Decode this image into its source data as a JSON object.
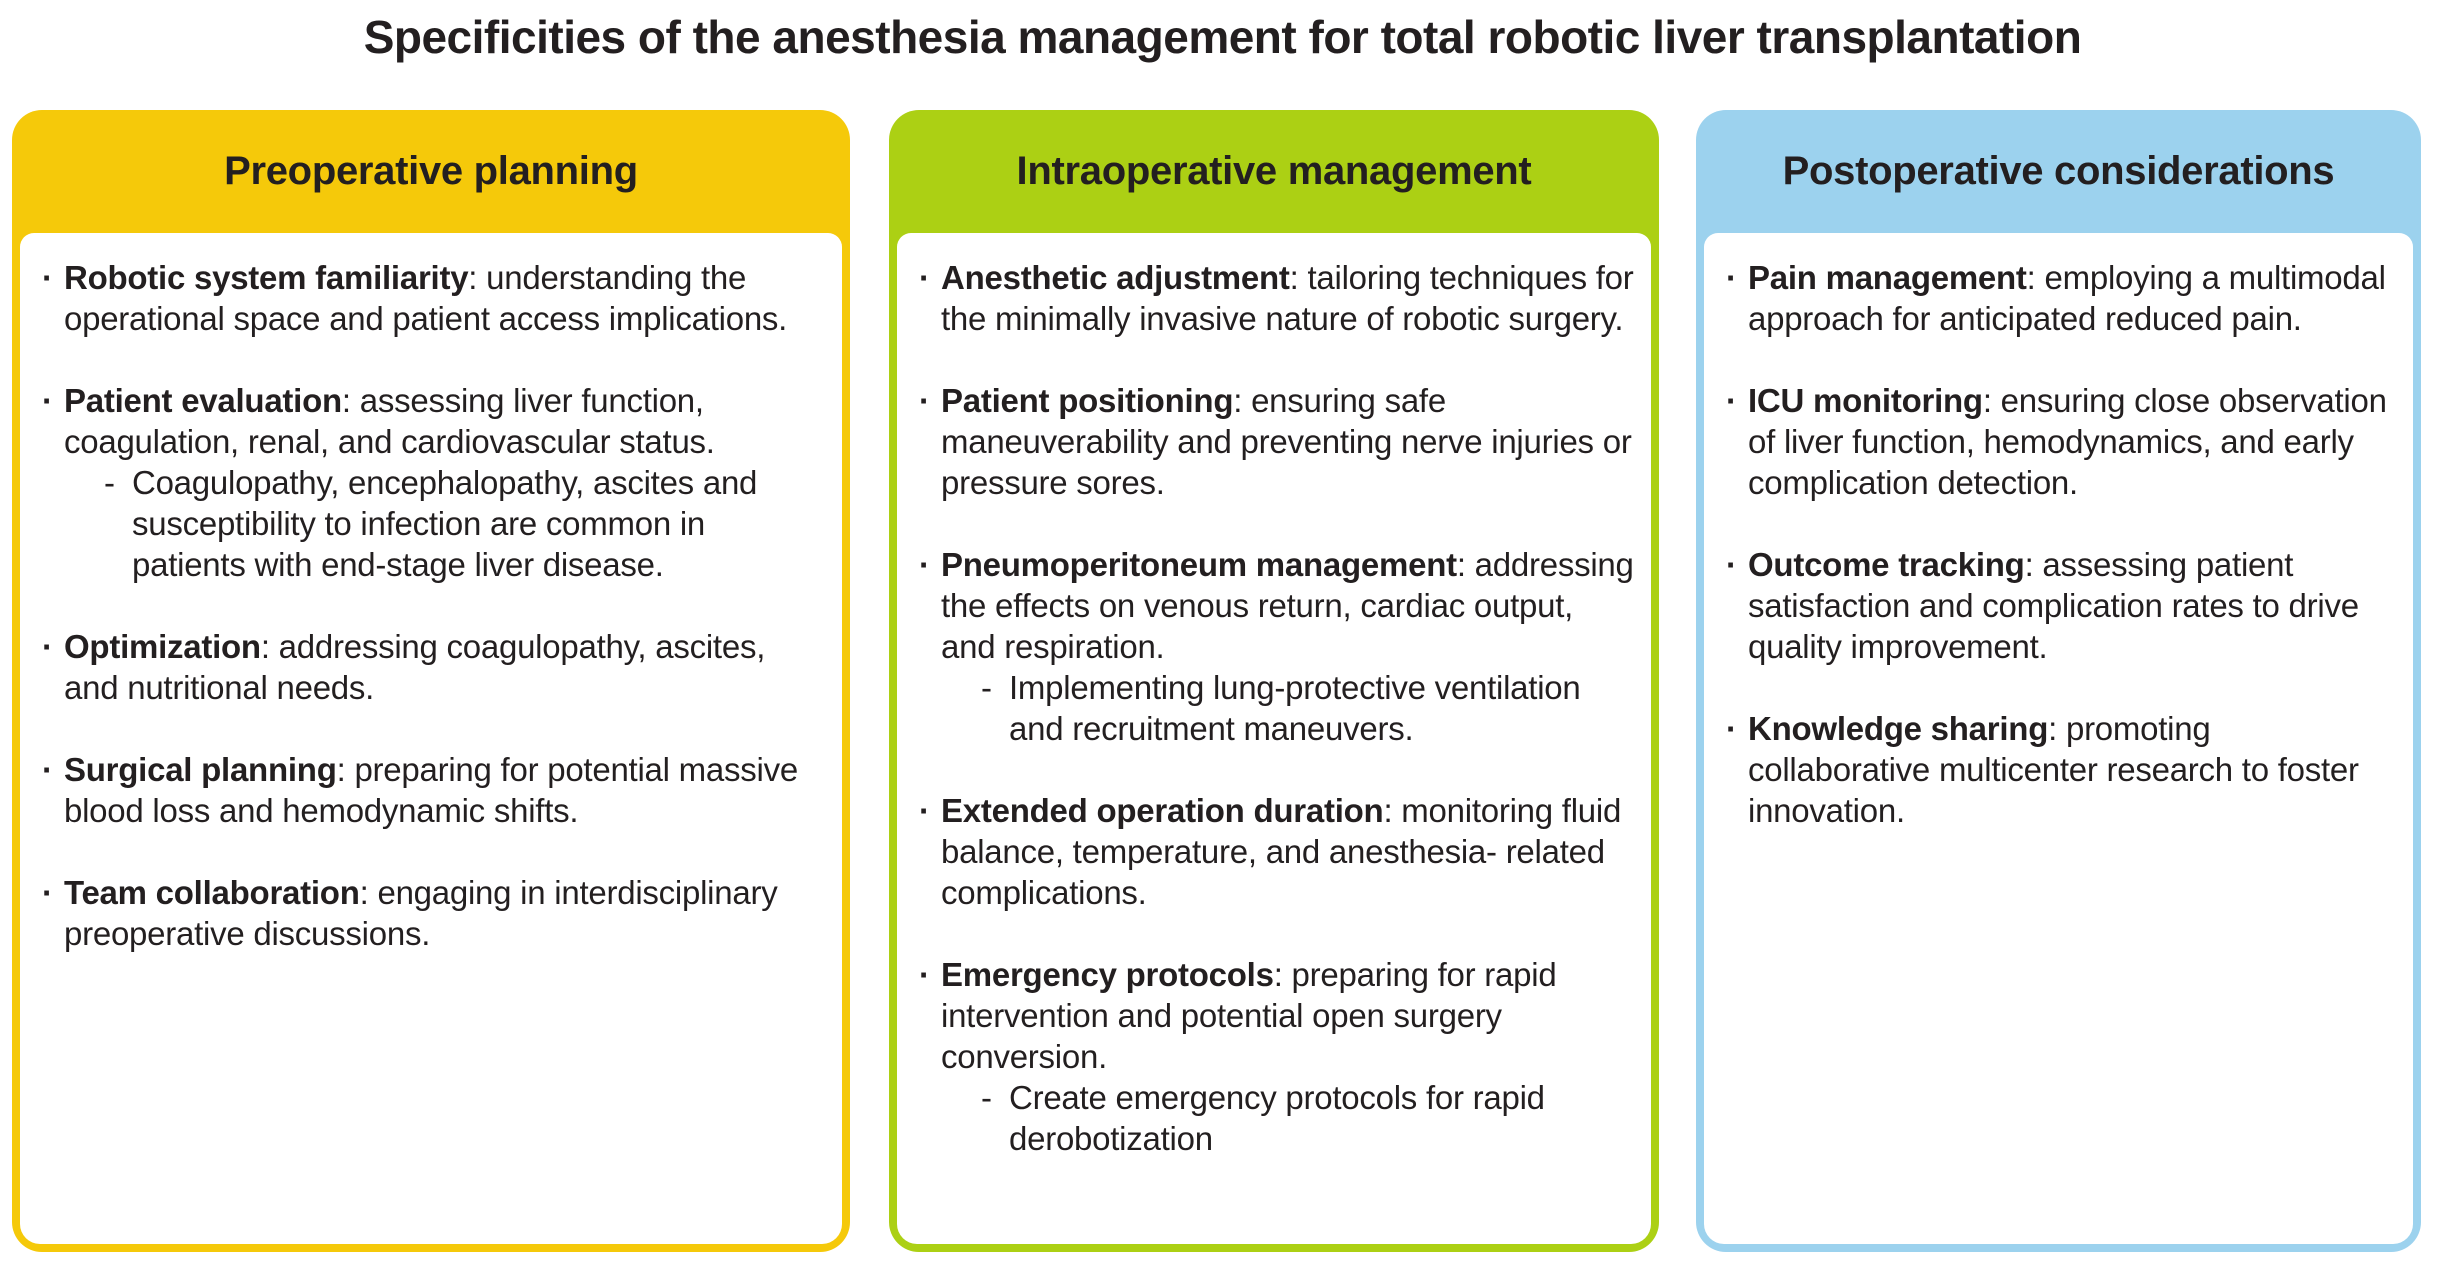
{
  "title": "Specificities of the anesthesia management for total robotic liver transplantation",
  "glyphs": {
    "bullet": "·",
    "dash": "-"
  },
  "colors": {
    "preoperative": "#F5C90A",
    "intraoperative": "#ACD014",
    "postoperative": "#9CD2EE",
    "text": "#231F20"
  },
  "columns": [
    {
      "header": "Preoperative planning",
      "items": [
        {
          "term": "Robotic system familiarity",
          "rest": ": understanding the operational space and patient access implications."
        },
        {
          "term": "Patient evaluation",
          "rest": ": assessing liver function, coagulation, renal, and cardiovascular status.",
          "sub": [
            "Coagulopathy, encephalopathy, ascites and susceptibility to infection are common in patients with end-stage liver disease."
          ]
        },
        {
          "term": "Optimization",
          "rest": ": addressing coagulopathy, ascites, and nutritional needs."
        },
        {
          "term": "Surgical planning",
          "rest": ": preparing for potential massive blood loss and hemodynamic shifts."
        },
        {
          "term": "Team collaboration",
          "rest": ": engaging in interdisciplinary preoperative discussions."
        }
      ]
    },
    {
      "header": "Intraoperative management",
      "items": [
        {
          "term": "Anesthetic adjustment",
          "rest": ": tailoring techniques for the minimally invasive nature of robotic surgery."
        },
        {
          "term": "Patient positioning",
          "rest": ": ensuring safe maneuverability and preventing nerve injuries or pressure sores."
        },
        {
          "term": "Pneumoperitoneum management",
          "rest": ": addressing the effects on venous return, cardiac output, and respiration.",
          "sub": [
            "Implementing lung-protective ventilation and recruitment maneuvers."
          ]
        },
        {
          "term": "Extended operation duration",
          "rest": ": monitoring fluid balance, temperature, and anesthesia- related complications."
        },
        {
          "term": "Emergency protocols",
          "rest": ": preparing for rapid intervention and potential open surgery conversion.",
          "sub": [
            "Create emergency protocols for rapid derobotization"
          ]
        }
      ]
    },
    {
      "header": "Postoperative considerations",
      "items": [
        {
          "term": "Pain management",
          "rest": ": employing a multimodal approach for anticipated reduced pain."
        },
        {
          "term": "ICU monitoring",
          "rest": ": ensuring close observation of liver function, hemodynamics, and early complication detection."
        },
        {
          "term": "Outcome tracking",
          "rest": ": assessing patient satisfaction and complication rates to drive quality improvement."
        },
        {
          "term": "Knowledge sharing",
          "rest": ": promoting collaborative multicenter research to foster innovation."
        }
      ]
    }
  ]
}
